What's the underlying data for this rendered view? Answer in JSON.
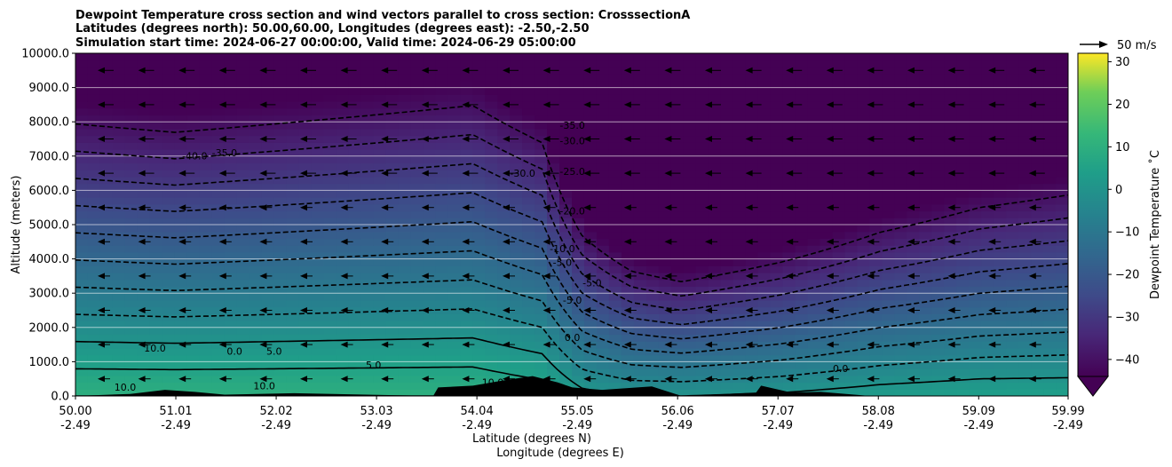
{
  "chart_data": {
    "type": "heatmap",
    "title_lines": [
      "Dewpoint Temperature cross section and wind vectors parallel to cross section: CrosssectionA",
      "Latitudes (degrees north): 50.00,60.00, Longitudes (degrees east): -2.50,-2.50",
      "Simulation start time: 2024-06-27 00:00:00, Valid time: 2024-06-29 05:00:00"
    ],
    "xlabel": "Latitude (degrees N)",
    "xlabel2": "Longitude (degrees E)",
    "ylabel": "Altitude (meters)",
    "xlim": [
      50.0,
      59.99
    ],
    "ylim": [
      0,
      10000
    ],
    "x_ticks": [
      {
        "lat": "50.00",
        "lon": "-2.49",
        "value": 50.0
      },
      {
        "lat": "51.01",
        "lon": "-2.49",
        "value": 51.01
      },
      {
        "lat": "52.02",
        "lon": "-2.49",
        "value": 52.02
      },
      {
        "lat": "53.03",
        "lon": "-2.49",
        "value": 53.03
      },
      {
        "lat": "54.04",
        "lon": "-2.49",
        "value": 54.04
      },
      {
        "lat": "55.05",
        "lon": "-2.49",
        "value": 55.05
      },
      {
        "lat": "56.06",
        "lon": "-2.49",
        "value": 56.06
      },
      {
        "lat": "57.07",
        "lon": "-2.49",
        "value": 57.07
      },
      {
        "lat": "58.08",
        "lon": "-2.49",
        "value": 58.08
      },
      {
        "lat": "59.09",
        "lon": "-2.49",
        "value": 59.09
      },
      {
        "lat": "59.99",
        "lon": "-2.49",
        "value": 59.99
      }
    ],
    "y_ticks": [
      {
        "label": "0.0",
        "value": 0
      },
      {
        "label": "1000.0",
        "value": 1000
      },
      {
        "label": "2000.0",
        "value": 2000
      },
      {
        "label": "3000.0",
        "value": 3000
      },
      {
        "label": "4000.0",
        "value": 4000
      },
      {
        "label": "5000.0",
        "value": 5000
      },
      {
        "label": "6000.0",
        "value": 6000
      },
      {
        "label": "7000.0",
        "value": 7000
      },
      {
        "label": "8000.0",
        "value": 8000
      },
      {
        "label": "9000.0",
        "value": 9000
      },
      {
        "label": "10000.0",
        "value": 10000
      }
    ],
    "grid": "horizontal white lines at y ticks",
    "colorbar": {
      "label": "Dewpoint Temperature $^\\circ$C",
      "label_display": "Dewpoint Temperature ˚C",
      "range": [
        -44,
        32
      ],
      "extend": "min",
      "ticks": [
        {
          "label": "30",
          "value": 30
        },
        {
          "label": "20",
          "value": 20
        },
        {
          "label": "10",
          "value": 10
        },
        {
          "label": "0",
          "value": 0
        },
        {
          "label": "−10",
          "value": -10
        },
        {
          "label": "−20",
          "value": -20
        },
        {
          "label": "−30",
          "value": -30
        },
        {
          "label": "−40",
          "value": -40
        }
      ],
      "colormap": "viridis"
    },
    "quiver_key": {
      "label": "50 m/s"
    },
    "isotherm_profile": [
      {
        "lat": 50.0,
        "t_surface": 10.0,
        "lapse_c_per_km": 6.3
      },
      {
        "lat": 51.0,
        "t_surface": 10.0,
        "lapse_c_per_km": 6.5
      },
      {
        "lat": 52.0,
        "t_surface": 10.0,
        "lapse_c_per_km": 6.3
      },
      {
        "lat": 53.0,
        "t_surface": 10.0,
        "lapse_c_per_km": 6.1
      },
      {
        "lat": 54.0,
        "t_surface": 10.0,
        "lapse_c_per_km": 5.9
      },
      {
        "lat": 54.7,
        "t_surface": 8.0,
        "lapse_c_per_km": 6.5
      },
      {
        "lat": 55.1,
        "t_surface": 2.0,
        "lapse_c_per_km": 9.0
      },
      {
        "lat": 55.6,
        "t_surface": 0.0,
        "lapse_c_per_km": 11.0
      },
      {
        "lat": 56.1,
        "t_surface": 0.0,
        "lapse_c_per_km": 12.0
      },
      {
        "lat": 57.1,
        "t_surface": 1.0,
        "lapse_c_per_km": 10.5
      },
      {
        "lat": 58.1,
        "t_surface": 3.0,
        "lapse_c_per_km": 9.0
      },
      {
        "lat": 59.1,
        "t_surface": 4.0,
        "lapse_c_per_km": 8.0
      },
      {
        "lat": 60.0,
        "t_surface": 4.0,
        "lapse_c_per_km": 7.5
      }
    ],
    "contour_levels": [
      -40,
      -35,
      -30,
      -25,
      -20,
      -15,
      -10,
      -5,
      0,
      5,
      10
    ],
    "contour_labels": [
      {
        "text": "-35.0",
        "lat": 55.0,
        "alt": 7800
      },
      {
        "text": "-30.0",
        "lat": 55.0,
        "alt": 7350
      },
      {
        "text": "-30.0",
        "lat": 54.5,
        "alt": 6400
      },
      {
        "text": "-25.0",
        "lat": 55.0,
        "alt": 6450
      },
      {
        "text": "-20.0",
        "lat": 55.0,
        "alt": 5300
      },
      {
        "text": "-10.0",
        "lat": 54.9,
        "alt": 4200
      },
      {
        "text": "-5.0",
        "lat": 54.9,
        "alt": 3800
      },
      {
        "text": "-5.0",
        "lat": 55.2,
        "alt": 3200
      },
      {
        "text": "-5.0",
        "lat": 55.0,
        "alt": 2700
      },
      {
        "text": "0.0",
        "lat": 55.0,
        "alt": 1600
      },
      {
        "text": "-35.0",
        "lat": 51.5,
        "alt": 7000
      },
      {
        "text": "-40.0",
        "lat": 51.2,
        "alt": 6900
      },
      {
        "text": "5.0",
        "lat": 52.0,
        "alt": 1200
      },
      {
        "text": "0.0",
        "lat": 51.6,
        "alt": 1200
      },
      {
        "text": "5.0",
        "lat": 53.0,
        "alt": 800
      },
      {
        "text": "10.0",
        "lat": 51.9,
        "alt": 200
      },
      {
        "text": "10.0",
        "lat": 50.5,
        "alt": 150
      },
      {
        "text": "10.0",
        "lat": 54.2,
        "alt": 300
      },
      {
        "text": "10.0",
        "lat": 50.8,
        "alt": 1300
      },
      {
        "text": "0.0",
        "lat": 57.7,
        "alt": 700
      }
    ],
    "terrain": [
      {
        "lat": 50.55,
        "alt": 60
      },
      {
        "lat": 50.9,
        "alt": 180
      },
      {
        "lat": 51.2,
        "alt": 120
      },
      {
        "lat": 51.5,
        "alt": 40
      },
      {
        "lat": 52.2,
        "alt": 80
      },
      {
        "lat": 53.6,
        "alt": 0
      },
      {
        "lat": 53.65,
        "alt": 250
      },
      {
        "lat": 54.0,
        "alt": 300
      },
      {
        "lat": 54.3,
        "alt": 450
      },
      {
        "lat": 54.6,
        "alt": 580
      },
      {
        "lat": 54.85,
        "alt": 400
      },
      {
        "lat": 55.0,
        "alt": 250
      },
      {
        "lat": 55.3,
        "alt": 180
      },
      {
        "lat": 55.8,
        "alt": 280
      },
      {
        "lat": 56.1,
        "alt": 0
      },
      {
        "lat": 56.85,
        "alt": 100
      },
      {
        "lat": 56.9,
        "alt": 300
      },
      {
        "lat": 57.2,
        "alt": 100
      },
      {
        "lat": 57.5,
        "alt": 120
      },
      {
        "lat": 58.0,
        "alt": 0
      }
    ]
  }
}
